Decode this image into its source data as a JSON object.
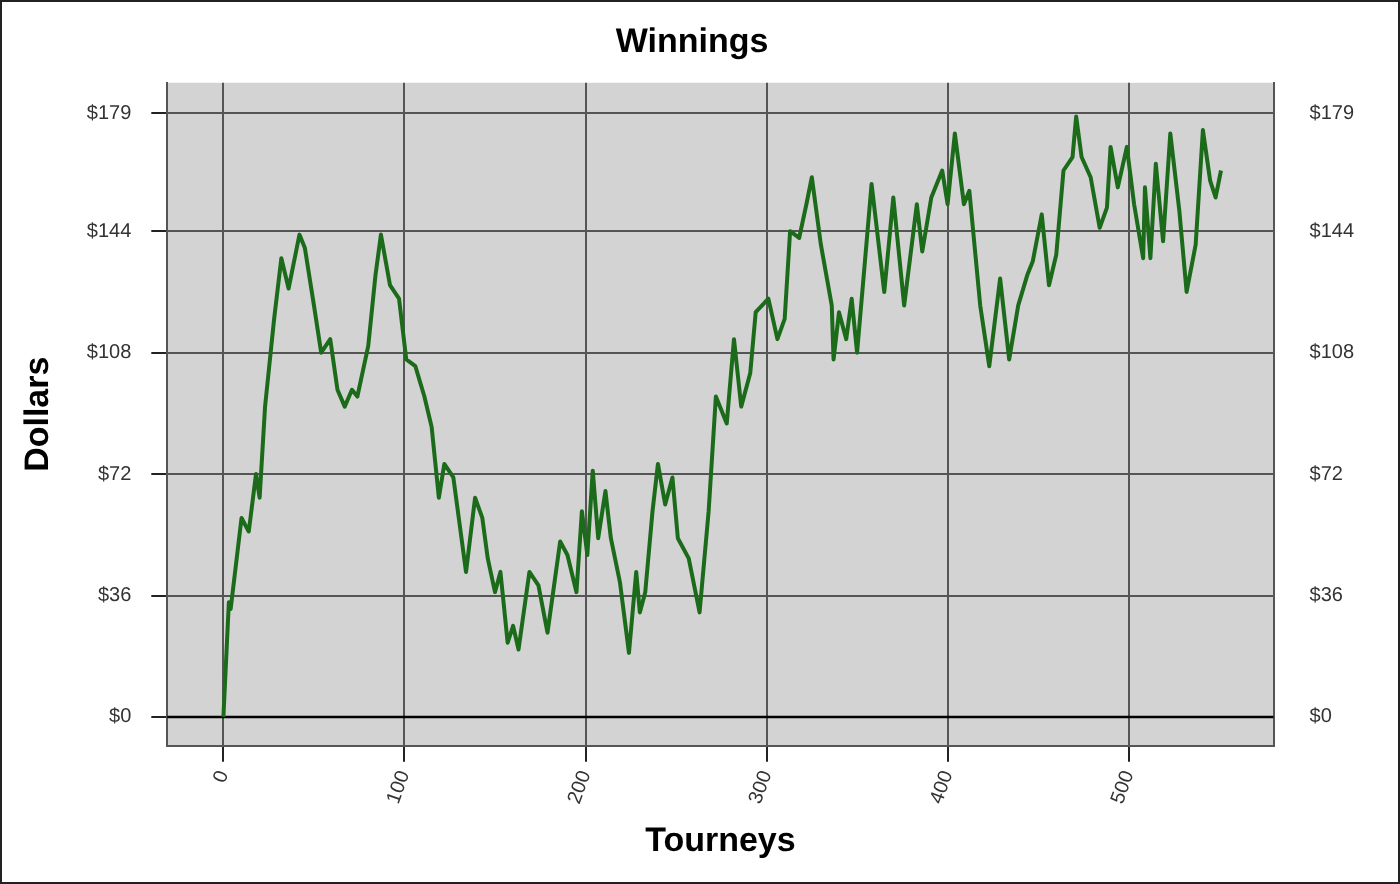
{
  "chart_data": {
    "type": "line",
    "title": "Winnings",
    "xlabel": "Tourneys",
    "ylabel": "Dollars",
    "xlim": [
      -31,
      580
    ],
    "xticks": [
      0,
      100,
      200,
      300,
      400,
      500
    ],
    "ylim": [
      -8.5,
      188
    ],
    "yticks": [
      {
        "value": 0,
        "label": "$0"
      },
      {
        "value": 36,
        "label": "$36"
      },
      {
        "value": 72,
        "label": "$72"
      },
      {
        "value": 108,
        "label": "$108"
      },
      {
        "value": 144,
        "label": "$144"
      },
      {
        "value": 179,
        "label": "$179"
      }
    ],
    "y2lim": [
      -8.5,
      188
    ],
    "y2ticks": [
      {
        "value": 0,
        "label": "$0"
      },
      {
        "value": 36,
        "label": "$36"
      },
      {
        "value": 72,
        "label": "$72"
      },
      {
        "value": 108,
        "label": "$108"
      },
      {
        "value": 144,
        "label": "$144"
      },
      {
        "value": 179,
        "label": "$179"
      }
    ],
    "grid": true,
    "legend": false,
    "marker": "none",
    "line_style": "solid",
    "ref_lines": [
      {
        "axis": "y",
        "value": 0,
        "color": "#000000",
        "line_style": "solid"
      }
    ],
    "series": [
      {
        "color": "#1b6b1b",
        "x": [
          0,
          3,
          4,
          10,
          14,
          18,
          20,
          23,
          28,
          32,
          36,
          42,
          45,
          50,
          54,
          59,
          63,
          67,
          71,
          74,
          80,
          84,
          87,
          92,
          97,
          101,
          106,
          111,
          115,
          119,
          122,
          127,
          130,
          134,
          139,
          143,
          146,
          150,
          153,
          157,
          160,
          163,
          169,
          174,
          179,
          186,
          190,
          195,
          198,
          201,
          204,
          207,
          211,
          214,
          219,
          224,
          228,
          230,
          233,
          237,
          240,
          244,
          248,
          251,
          257,
          263,
          268,
          272,
          278,
          282,
          286,
          291,
          294,
          301,
          306,
          310,
          313,
          318,
          322,
          325,
          330,
          336,
          337,
          340,
          344,
          347,
          350,
          358,
          365,
          370,
          376,
          383,
          386,
          391,
          397,
          400,
          404,
          409,
          412,
          418,
          423,
          429,
          434,
          439,
          444,
          447,
          452,
          456,
          460,
          464,
          469,
          471,
          474,
          479,
          484,
          488,
          490,
          494,
          499,
          503,
          508,
          509,
          512,
          515,
          519,
          523,
          528,
          532,
          537,
          541,
          545,
          548,
          551
        ],
        "values": [
          0,
          34,
          32,
          59,
          55,
          72,
          65,
          92,
          118,
          136,
          127,
          143,
          139,
          122,
          108,
          112,
          97,
          92,
          97,
          95,
          110,
          131,
          143,
          128,
          124,
          106,
          104,
          95,
          86,
          65,
          75,
          71,
          59,
          43,
          65,
          59,
          47,
          37,
          43,
          22,
          27,
          20,
          43,
          39,
          25,
          52,
          48,
          37,
          61,
          48,
          73,
          53,
          67,
          53,
          40,
          19,
          43,
          31,
          37,
          61,
          75,
          63,
          71,
          53,
          47,
          31,
          61,
          95,
          87,
          112,
          92,
          102,
          120,
          124,
          112,
          118,
          144,
          142,
          152,
          160,
          140,
          122,
          106,
          120,
          112,
          124,
          108,
          158,
          126,
          154,
          122,
          152,
          138,
          154,
          162,
          152,
          173,
          152,
          156,
          122,
          104,
          130,
          106,
          122,
          131,
          135,
          149,
          128,
          137,
          162,
          166,
          178,
          166,
          160,
          145,
          151,
          169,
          157,
          169,
          152,
          136,
          157,
          136,
          164,
          141,
          173,
          150,
          126,
          140,
          174,
          159,
          154,
          162
        ]
      }
    ]
  }
}
